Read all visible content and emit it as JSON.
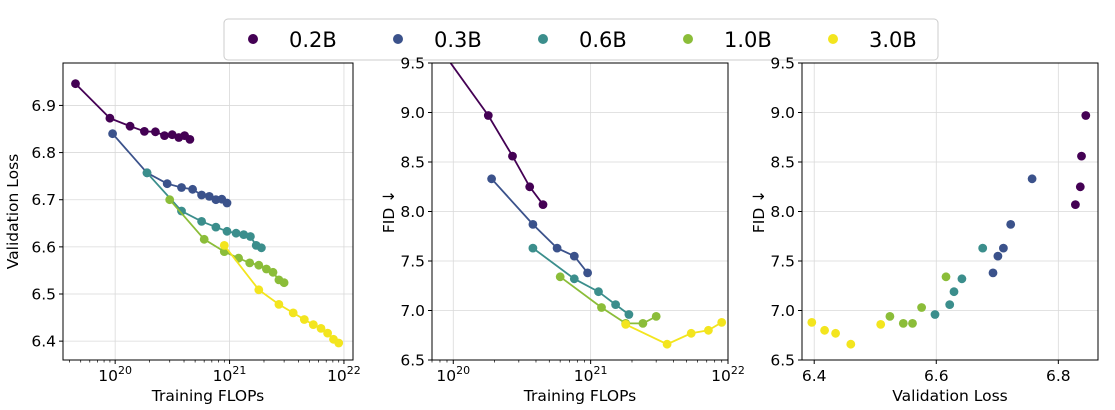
{
  "colors": {
    "0.2B": "#440154",
    "0.3B": "#3b528b",
    "0.6B": "#3b8e8c",
    "1.0B": "#8bbd39",
    "3.0B": "#f3e51e"
  },
  "legend": [
    "0.2B",
    "0.3B",
    "0.6B",
    "1.0B",
    "3.0B"
  ],
  "chart_data": [
    {
      "type": "line",
      "xlabel": "Training FLOPs",
      "ylabel": "Validation Loss",
      "xscale": "log",
      "xlim": [
        3.5e+19,
        1.2e+22
      ],
      "ylim": [
        6.36,
        6.99
      ],
      "xticks": [
        {
          "value": 1e+20,
          "label": "10^20"
        },
        {
          "value": 1e+21,
          "label": "10^21"
        },
        {
          "value": 1e+22,
          "label": "10^22"
        }
      ],
      "yticks": [
        {
          "value": 6.4,
          "label": "6.4"
        },
        {
          "value": 6.5,
          "label": "6.5"
        },
        {
          "value": 6.6,
          "label": "6.6"
        },
        {
          "value": 6.7,
          "label": "6.7"
        },
        {
          "value": 6.8,
          "label": "6.8"
        },
        {
          "value": 6.9,
          "label": "6.9"
        }
      ],
      "grid": true,
      "series": [
        {
          "name": "0.2B",
          "x": [
            4.5e+19,
            9e+19,
            1.35e+20,
            1.8e+20,
            2.25e+20,
            2.7e+20,
            3.15e+20,
            3.6e+20,
            4.05e+20,
            4.5e+20
          ],
          "y": [
            6.946,
            6.873,
            6.856,
            6.845,
            6.844,
            6.836,
            6.838,
            6.832,
            6.836,
            6.828
          ]
        },
        {
          "name": "0.3B",
          "x": [
            9.5e+19,
            1.9e+20,
            2.85e+20,
            3.8e+20,
            4.75e+20,
            5.7e+20,
            6.65e+20,
            7.6e+20,
            8.55e+20,
            9.5e+20
          ],
          "y": [
            6.84,
            6.757,
            6.734,
            6.726,
            6.722,
            6.71,
            6.707,
            6.7,
            6.701,
            6.693
          ]
        },
        {
          "name": "0.6B",
          "x": [
            1.9e+20,
            3.8e+20,
            5.7e+20,
            7.6e+20,
            9.5e+20,
            1.14e+21,
            1.33e+21,
            1.52e+21,
            1.71e+21,
            1.9e+21
          ],
          "y": [
            6.757,
            6.676,
            6.654,
            6.642,
            6.633,
            6.629,
            6.626,
            6.622,
            6.603,
            6.598
          ]
        },
        {
          "name": "1.0B",
          "x": [
            3e+20,
            6e+20,
            9e+20,
            1.2e+21,
            1.5e+21,
            1.8e+21,
            2.1e+21,
            2.4e+21,
            2.7e+21,
            3e+21
          ],
          "y": [
            6.7,
            6.616,
            6.59,
            6.576,
            6.566,
            6.561,
            6.553,
            6.546,
            6.53,
            6.524
          ]
        },
        {
          "name": "3.0B",
          "x": [
            9e+20,
            1.8e+21,
            2.7e+21,
            3.6e+21,
            4.5e+21,
            5.4e+21,
            6.3e+21,
            7.2e+21,
            8.1e+21,
            9e+21
          ],
          "y": [
            6.603,
            6.509,
            6.478,
            6.46,
            6.446,
            6.435,
            6.427,
            6.417,
            6.404,
            6.396
          ]
        }
      ]
    },
    {
      "type": "line",
      "xlabel": "Training FLOPs",
      "ylabel": "FID ↓",
      "xscale": "log",
      "xlim": [
        7e+19,
        1e+22
      ],
      "ylim": [
        6.5,
        9.5
      ],
      "xticks": [
        {
          "value": 1e+20,
          "label": "10^20"
        },
        {
          "value": 1e+21,
          "label": "10^21"
        },
        {
          "value": 1e+22,
          "label": "10^22"
        }
      ],
      "yticks": [
        {
          "value": 6.5,
          "label": "6.5"
        },
        {
          "value": 7.0,
          "label": "7.0"
        },
        {
          "value": 7.5,
          "label": "7.5"
        },
        {
          "value": 8.0,
          "label": "8.0"
        },
        {
          "value": 8.5,
          "label": "8.5"
        },
        {
          "value": 9.0,
          "label": "9.0"
        },
        {
          "value": 9.5,
          "label": "9.5"
        }
      ],
      "grid": true,
      "series": [
        {
          "name": "0.2B",
          "x": [
            9e+19,
            1.8e+20,
            2.7e+20,
            3.6e+20,
            4.5e+20
          ],
          "y": [
            9.55,
            8.97,
            8.56,
            8.25,
            8.07
          ]
        },
        {
          "name": "0.3B",
          "x": [
            1.9e+20,
            3.8e+20,
            5.7e+20,
            7.6e+20,
            9.5e+20
          ],
          "y": [
            8.33,
            7.87,
            7.63,
            7.55,
            7.38
          ]
        },
        {
          "name": "0.6B",
          "x": [
            3.8e+20,
            7.6e+20,
            1.14e+21,
            1.52e+21,
            1.9e+21
          ],
          "y": [
            7.63,
            7.32,
            7.19,
            7.06,
            6.96
          ]
        },
        {
          "name": "1.0B",
          "x": [
            6e+20,
            1.2e+21,
            1.8e+21,
            2.4e+21,
            3e+21
          ],
          "y": [
            7.34,
            7.03,
            6.87,
            6.87,
            6.94
          ]
        },
        {
          "name": "3.0B",
          "x": [
            1.8e+21,
            3.6e+21,
            5.4e+21,
            7.2e+21,
            9e+21
          ],
          "y": [
            6.86,
            6.66,
            6.77,
            6.8,
            6.88
          ]
        }
      ]
    },
    {
      "type": "scatter",
      "xlabel": "Validation Loss",
      "ylabel": "FID ↓",
      "xlim": [
        6.38,
        6.865
      ],
      "ylim": [
        6.5,
        9.5
      ],
      "xticks": [
        {
          "value": 6.4,
          "label": "6.4"
        },
        {
          "value": 6.6,
          "label": "6.6"
        },
        {
          "value": 6.8,
          "label": "6.8"
        }
      ],
      "yticks": [
        {
          "value": 6.5,
          "label": "6.5"
        },
        {
          "value": 7.0,
          "label": "7.0"
        },
        {
          "value": 7.5,
          "label": "7.5"
        },
        {
          "value": 8.0,
          "label": "8.0"
        },
        {
          "value": 8.5,
          "label": "8.5"
        },
        {
          "value": 9.0,
          "label": "9.0"
        },
        {
          "value": 9.5,
          "label": "9.5"
        }
      ],
      "grid": true,
      "series": [
        {
          "name": "0.2B",
          "x": [
            6.845,
            6.838,
            6.836,
            6.828
          ],
          "y": [
            8.97,
            8.56,
            8.25,
            8.07
          ]
        },
        {
          "name": "0.3B",
          "x": [
            6.757,
            6.722,
            6.71,
            6.701,
            6.693
          ],
          "y": [
            8.33,
            7.87,
            7.63,
            7.55,
            7.38
          ]
        },
        {
          "name": "0.6B",
          "x": [
            6.676,
            6.642,
            6.629,
            6.622,
            6.598
          ],
          "y": [
            7.63,
            7.32,
            7.19,
            7.06,
            6.96
          ]
        },
        {
          "name": "1.0B",
          "x": [
            6.616,
            6.576,
            6.561,
            6.546,
            6.524
          ],
          "y": [
            7.34,
            7.03,
            6.87,
            6.87,
            6.94
          ]
        },
        {
          "name": "3.0B",
          "x": [
            6.509,
            6.46,
            6.435,
            6.417,
            6.396
          ],
          "y": [
            6.86,
            6.66,
            6.77,
            6.8,
            6.88
          ]
        }
      ]
    }
  ]
}
